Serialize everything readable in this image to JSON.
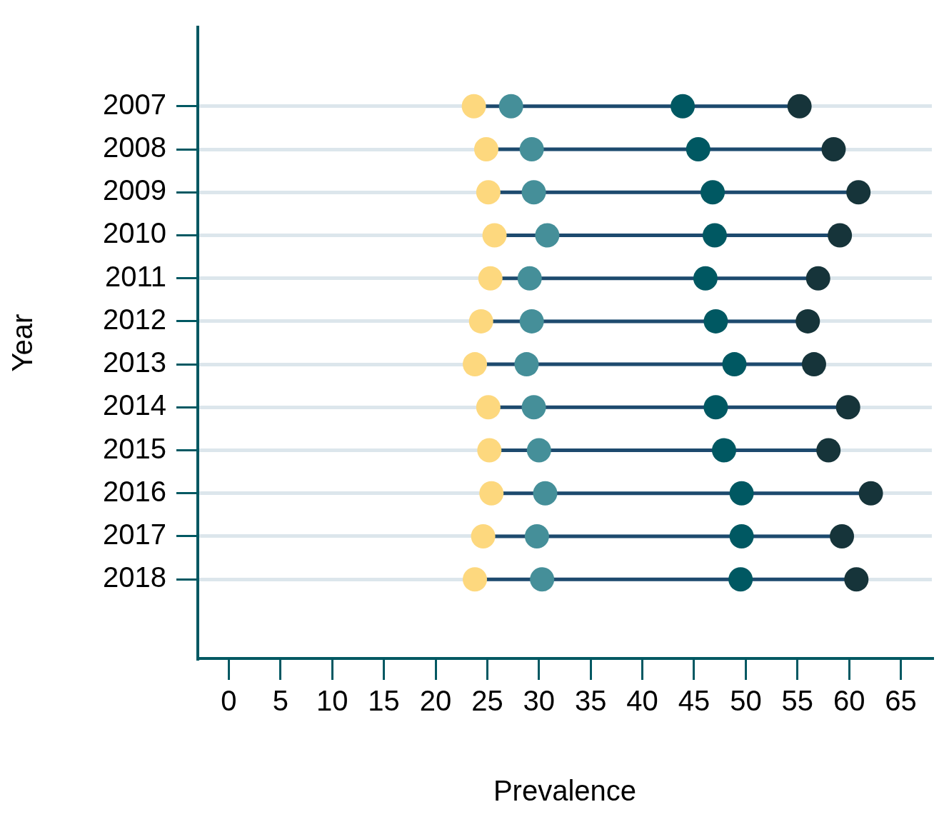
{
  "chart_data": {
    "type": "scatter",
    "orientation": "horizontal",
    "xlabel": "Prevalence",
    "ylabel": "Year",
    "categories": [
      "2007",
      "2008",
      "2009",
      "2010",
      "2011",
      "2012",
      "2013",
      "2014",
      "2015",
      "2016",
      "2017",
      "2018"
    ],
    "series": [
      {
        "color": "#fdd87e",
        "values": [
          23.7,
          24.9,
          25.1,
          25.7,
          25.3,
          24.4,
          23.8,
          25.1,
          25.2,
          25.4,
          24.6,
          23.8
        ]
      },
      {
        "color": "#458f99",
        "values": [
          27.3,
          29.3,
          29.5,
          30.8,
          29.1,
          29.3,
          28.8,
          29.5,
          30.0,
          30.6,
          29.8,
          30.3
        ]
      },
      {
        "color": "#005862",
        "values": [
          43.9,
          45.4,
          46.8,
          47.0,
          46.1,
          47.1,
          48.9,
          47.1,
          47.9,
          49.6,
          49.6,
          49.5
        ]
      },
      {
        "color": "#16343a",
        "values": [
          55.2,
          58.5,
          60.9,
          59.1,
          57.0,
          56.0,
          56.6,
          59.9,
          58.0,
          62.1,
          59.3,
          60.7
        ]
      }
    ],
    "xlim": [
      -3,
      68
    ],
    "xticks": [
      0,
      5,
      10,
      15,
      20,
      25,
      30,
      35,
      40,
      45,
      50,
      55,
      60,
      65
    ],
    "grid": "y",
    "legend": false,
    "marker": "circle"
  }
}
